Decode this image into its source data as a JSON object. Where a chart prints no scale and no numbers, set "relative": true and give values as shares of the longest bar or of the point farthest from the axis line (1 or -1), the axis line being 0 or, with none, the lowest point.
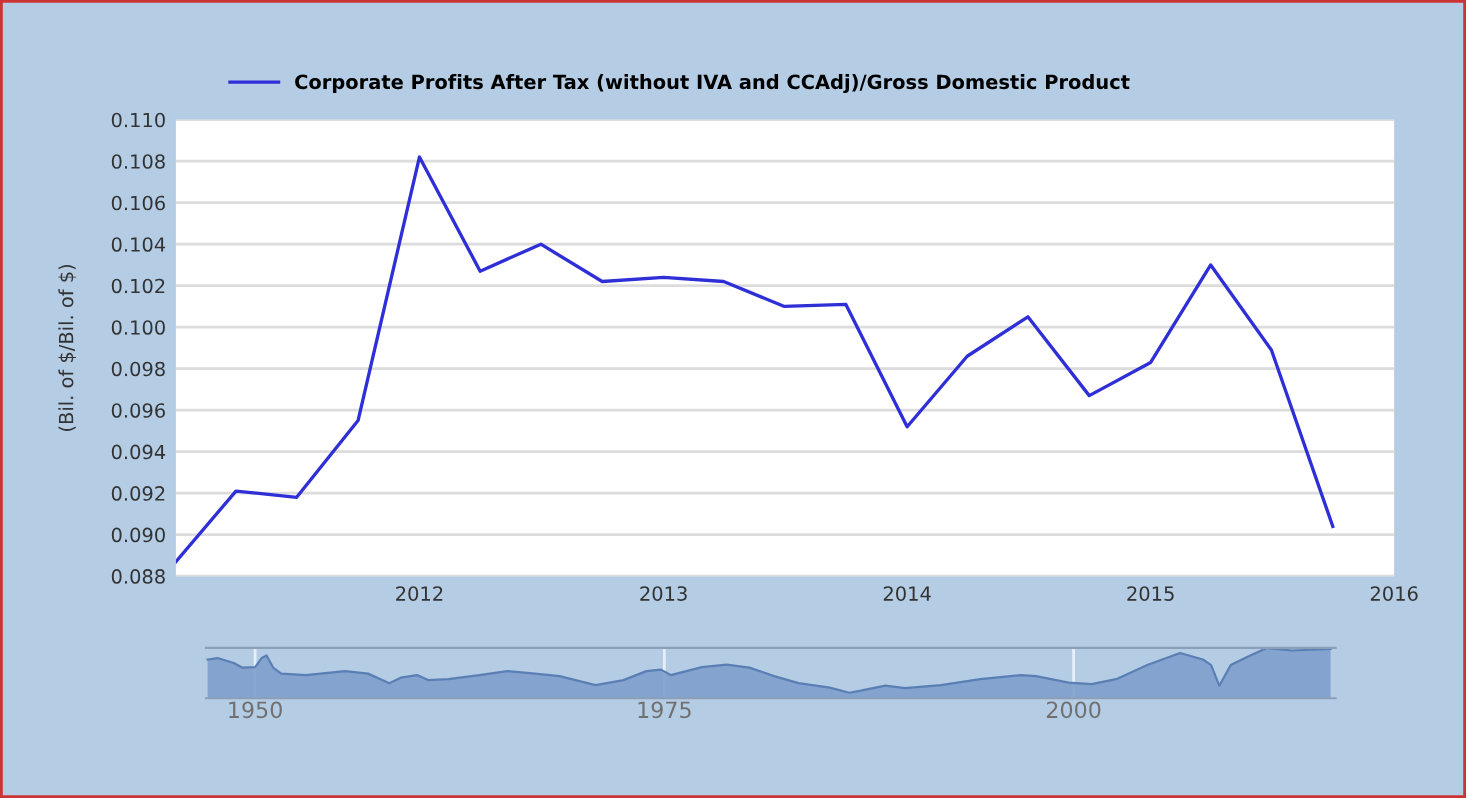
{
  "chart_data": [
    {
      "type": "line",
      "ylabel": "(Bil. of $/Bil. of $)",
      "legend": "top",
      "grid": "y",
      "x": [
        "2011-01",
        "2011-04",
        "2011-07",
        "2011-10",
        "2012-01",
        "2012-04",
        "2012-07",
        "2012-10",
        "2013-01",
        "2013-04",
        "2013-07",
        "2013-10",
        "2014-01",
        "2014-04",
        "2014-07",
        "2014-10",
        "2015-01",
        "2015-04",
        "2015-07",
        "2015-10"
      ],
      "series": [
        {
          "name": "Corporate Profits After Tax (without IVA and CCAdj)/Gross Domestic Product",
          "color": "#2f2fd8",
          "values": [
            0.0887,
            0.0921,
            0.0918,
            0.0955,
            0.1082,
            0.1027,
            0.104,
            0.1022,
            0.1024,
            0.1022,
            0.101,
            0.1011,
            0.0952,
            0.0986,
            0.1005,
            0.0967,
            0.0983,
            0.103,
            0.0989,
            0.0904
          ]
        }
      ],
      "xlim": [
        "2011-01",
        "2016-01"
      ],
      "xticks": [
        "2012",
        "2013",
        "2014",
        "2015",
        "2016"
      ],
      "ylim": [
        0.088,
        0.11
      ],
      "yticks": [
        {
          "value": 0.088,
          "label": "0.088"
        },
        {
          "value": 0.09,
          "label": "0.090"
        },
        {
          "value": 0.092,
          "label": "0.092"
        },
        {
          "value": 0.094,
          "label": "0.094"
        },
        {
          "value": 0.096,
          "label": "0.096"
        },
        {
          "value": 0.098,
          "label": "0.098"
        },
        {
          "value": 0.1,
          "label": "0.100"
        },
        {
          "value": 0.102,
          "label": "0.102"
        },
        {
          "value": 0.104,
          "label": "0.104"
        },
        {
          "value": 0.106,
          "label": "0.106"
        },
        {
          "value": 0.108,
          "label": "0.108"
        },
        {
          "value": 0.11,
          "label": "0.110"
        }
      ]
    },
    {
      "type": "area",
      "relative": true,
      "grid": "x",
      "xlim": [
        1947,
        2016
      ],
      "xticks": [
        1950,
        1975,
        2000
      ],
      "x": [
        1947.1,
        1947.7,
        1948.7,
        1949.2,
        1950.0,
        1950.4,
        1950.7,
        1951.1,
        1951.6,
        1953.1,
        1955.5,
        1956.9,
        1958.2,
        1958.9,
        1959.9,
        1960.6,
        1961.8,
        1963.7,
        1965.4,
        1967.1,
        1968.6,
        1970.8,
        1972.5,
        1973.9,
        1974.8,
        1975.4,
        1977.3,
        1978.8,
        1980.2,
        1981.7,
        1983.2,
        1985.1,
        1986.3,
        1987.0,
        1988.5,
        1989.7,
        1991.9,
        1994.3,
        1996.8,
        1997.7,
        1999.7,
        2001.1,
        2002.6,
        2004.5,
        2006.5,
        2007.9,
        2008.4,
        2008.9,
        2009.6,
        2010.6,
        2011.8,
        2013.3,
        2015.7
      ],
      "series": [
        {
          "color": "#7f9fcc",
          "values": [
            0.77,
            0.8,
            0.7,
            0.61,
            0.62,
            0.8,
            0.85,
            0.61,
            0.49,
            0.46,
            0.54,
            0.49,
            0.3,
            0.41,
            0.46,
            0.36,
            0.38,
            0.46,
            0.54,
            0.49,
            0.44,
            0.26,
            0.36,
            0.54,
            0.57,
            0.46,
            0.62,
            0.67,
            0.61,
            0.44,
            0.3,
            0.21,
            0.11,
            0.15,
            0.25,
            0.2,
            0.26,
            0.38,
            0.46,
            0.44,
            0.31,
            0.28,
            0.38,
            0.66,
            0.9,
            0.77,
            0.66,
            0.25,
            0.66,
            0.82,
            1.0,
            0.95,
            0.98
          ]
        }
      ]
    }
  ]
}
